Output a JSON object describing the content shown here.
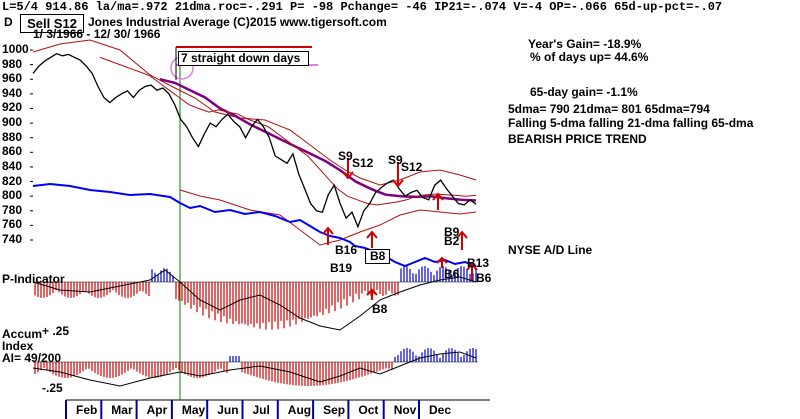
{
  "header": {
    "stats": "L=5/4  914.86  la/ma=.972 21dma.roc=-.291 P= -98 Pchange= -46 IP21=-.074 V=-4 OP=-.066 65d-up-pct=-.07",
    "signal": "Sell S12",
    "title_prefix": "D",
    "title": "Jones Industrial Average   (C)2015 www.tigersoft.com",
    "date_range": "1/ 3/1966 - 12/ 30/ 1966"
  },
  "summary": {
    "years_gain": "Year's Gain= -18.9%",
    "pct_days_up": "% of days up= 44.6%",
    "gain_65d": "65-day gain= -1.1%",
    "mas": "5dma= 790 21dma= 801 65dma=794",
    "falling": "Falling 5-dma falling 21-dma falling 65-dma",
    "trend": "BEARISH PRICE TREND"
  },
  "annotations": {
    "straight_down": "7 straight down days",
    "s9": "S9",
    "s12": "S12",
    "s9b": "S9",
    "s12b": "S12",
    "b16": "B16",
    "b19": "B19",
    "b8": "B8",
    "b9": "B9",
    "b2": "B2",
    "b6": "B6",
    "b13": "B13",
    "b6b": "B6",
    "b8b": "B8",
    "nyse_label": "NYSE A/D Line"
  },
  "panels": {
    "p_indicator": "P-Indicator",
    "accum_label": "Accum",
    "accum_plus": "+ .25",
    "index_label": "Index",
    "ai_label": "AI= 49/200",
    "accum_minus": "-.25"
  },
  "colors": {
    "price": "#000000",
    "ma21": "#b01010",
    "ma65": "#800080",
    "ad_line": "#0000ff",
    "bars_neg": "#d00000",
    "bars_pos": "#0000d0",
    "vertical": "#008000",
    "signal_up": "#d00000",
    "circle": "#e080e0"
  },
  "chart_data": {
    "type": "line",
    "title": "Dow Jones Industrial Average 1966",
    "ylim": [
      740,
      1000
    ],
    "y_ticks": [
      1000,
      980,
      960,
      940,
      920,
      900,
      880,
      860,
      840,
      820,
      800,
      780,
      760,
      740
    ],
    "x_ticks": [
      "Feb",
      "Mar",
      "Apr",
      "May",
      "Jun",
      "Jul",
      "Aug",
      "Sep",
      "Oct",
      "Nov",
      "Dec"
    ],
    "series": [
      {
        "name": "DJIA",
        "values": [
          968,
          978,
          985,
          990,
          995,
          992,
          994,
          990,
          986,
          978,
          968,
          950,
          935,
          928,
          935,
          940,
          944,
          935,
          945,
          950,
          952,
          945,
          948,
          940,
          925,
          905,
          895,
          880,
          868,
          885,
          900,
          895,
          905,
          912,
          902,
          895,
          880,
          895,
          905,
          895,
          880,
          855,
          850,
          845,
          858,
          830,
          810,
          790,
          780,
          778,
          802,
          815,
          790,
          770,
          778,
          758,
          780,
          790,
          805,
          812,
          818,
          822,
          810,
          800,
          805,
          808,
          798,
          795,
          815,
          822,
          810,
          800,
          790,
          788,
          795,
          789
        ]
      },
      {
        "name": "21-dma",
        "values": [
          990,
          985,
          980,
          975,
          970,
          965,
          955,
          945,
          935,
          925,
          920,
          915,
          918,
          915,
          912,
          905,
          900,
          895,
          885,
          875,
          865,
          855,
          840,
          825,
          810,
          800,
          795,
          790,
          788,
          790,
          792,
          795,
          800,
          802,
          803,
          802,
          801,
          800,
          801
        ]
      },
      {
        "name": "65-dma",
        "values": [
          960,
          955,
          945,
          935,
          920,
          910,
          898,
          888,
          878,
          868,
          858,
          848,
          835,
          820,
          810,
          802,
          800,
          799,
          800,
          797,
          795,
          794
        ]
      }
    ],
    "signals": [
      "S9",
      "S12",
      "S9",
      "S12",
      "B16",
      "B19",
      "B8",
      "B9",
      "B2",
      "B6",
      "B13",
      "B6"
    ]
  }
}
